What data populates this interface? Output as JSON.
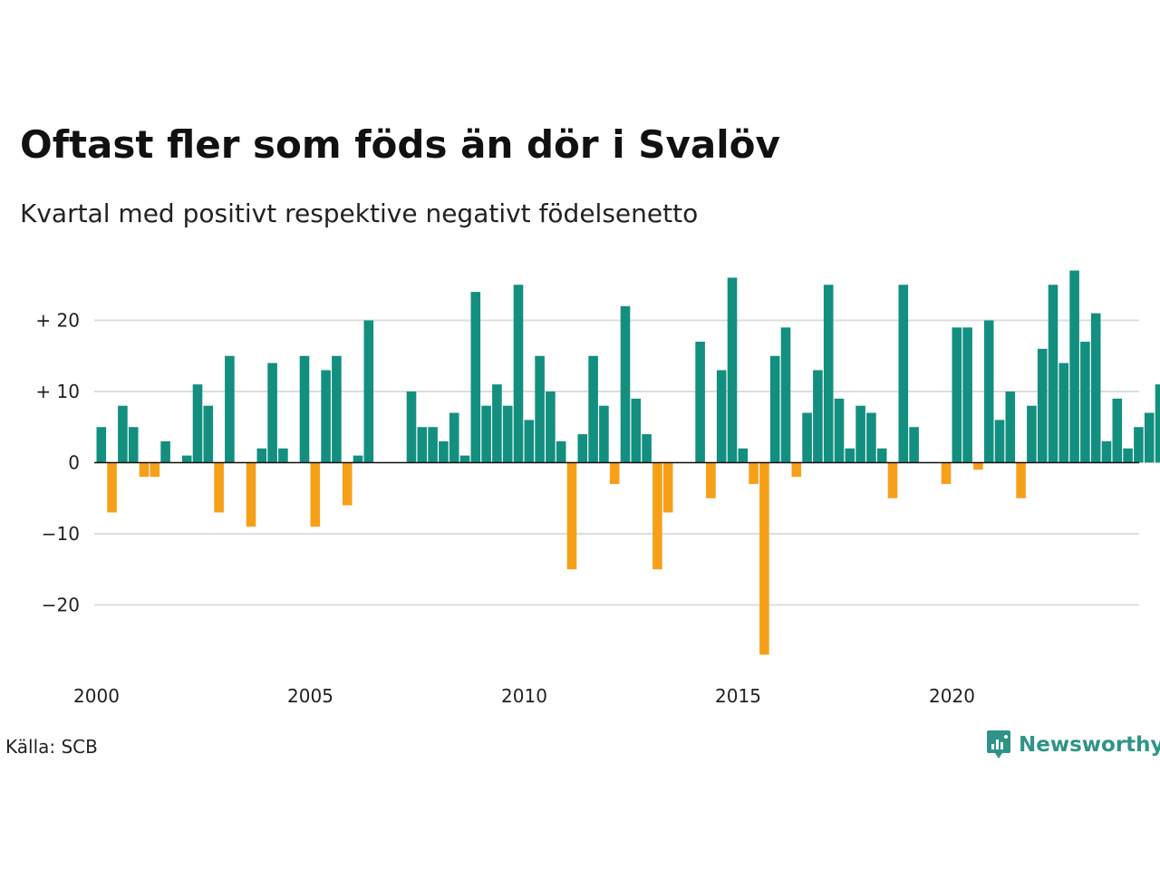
{
  "title": "Oftast fler som föds än dör i Svalöv",
  "subtitle": "Kvartal med positivt respektive negativt födelsenetto",
  "source": "Källa: SCB",
  "brand": {
    "name": "Newsworthy",
    "icon": "newsworthy-logo-icon",
    "color": "#2e9488"
  },
  "colors": {
    "positive": "#138f80",
    "negative": "#f6a01a",
    "grid": "#dddddd",
    "zero_line": "#111111"
  },
  "chart_data": {
    "type": "bar",
    "title": "Oftast fler som föds än dör i Svalöv",
    "subtitle": "Kvartal med positivt respektive negativt födelsenetto",
    "xlabel": "",
    "ylabel": "",
    "x_ticks": [
      "2000",
      "2005",
      "2010",
      "2015",
      "2020"
    ],
    "y_ticks": [
      {
        "value": 20,
        "label": "+ 20"
      },
      {
        "value": 10,
        "label": "+ 10"
      },
      {
        "value": 0,
        "label": "0"
      },
      {
        "value": -10,
        "label": "−10"
      },
      {
        "value": -20,
        "label": "−20"
      }
    ],
    "ylim": [
      -29,
      29
    ],
    "xlim": [
      2000,
      2024.5
    ],
    "grid": true,
    "legend": false,
    "first_quarter": "2000 K1",
    "series": [
      {
        "values": [
          5,
          -7,
          8,
          5,
          -2,
          -2,
          3,
          0,
          1,
          11,
          8,
          -7,
          15,
          0,
          -9,
          2,
          14,
          2,
          0,
          15,
          -9,
          13,
          15,
          -6,
          1,
          20,
          0,
          0,
          0,
          10,
          5,
          5,
          3,
          7,
          1,
          24,
          8,
          11,
          8,
          25,
          6,
          15,
          10,
          3,
          -15,
          4,
          15,
          8,
          -3,
          22,
          9,
          4,
          -15,
          -7,
          0,
          0,
          17,
          -5,
          13,
          26,
          2,
          -3,
          -27,
          15,
          19,
          -2,
          7,
          13,
          25,
          9,
          2,
          8,
          7,
          2,
          -5,
          25,
          5,
          0,
          0,
          -3,
          19,
          19,
          -1,
          20,
          6,
          10,
          -5,
          8,
          16,
          25,
          14,
          27,
          17,
          21,
          3,
          9,
          2,
          5,
          7,
          11
        ]
      }
    ]
  }
}
